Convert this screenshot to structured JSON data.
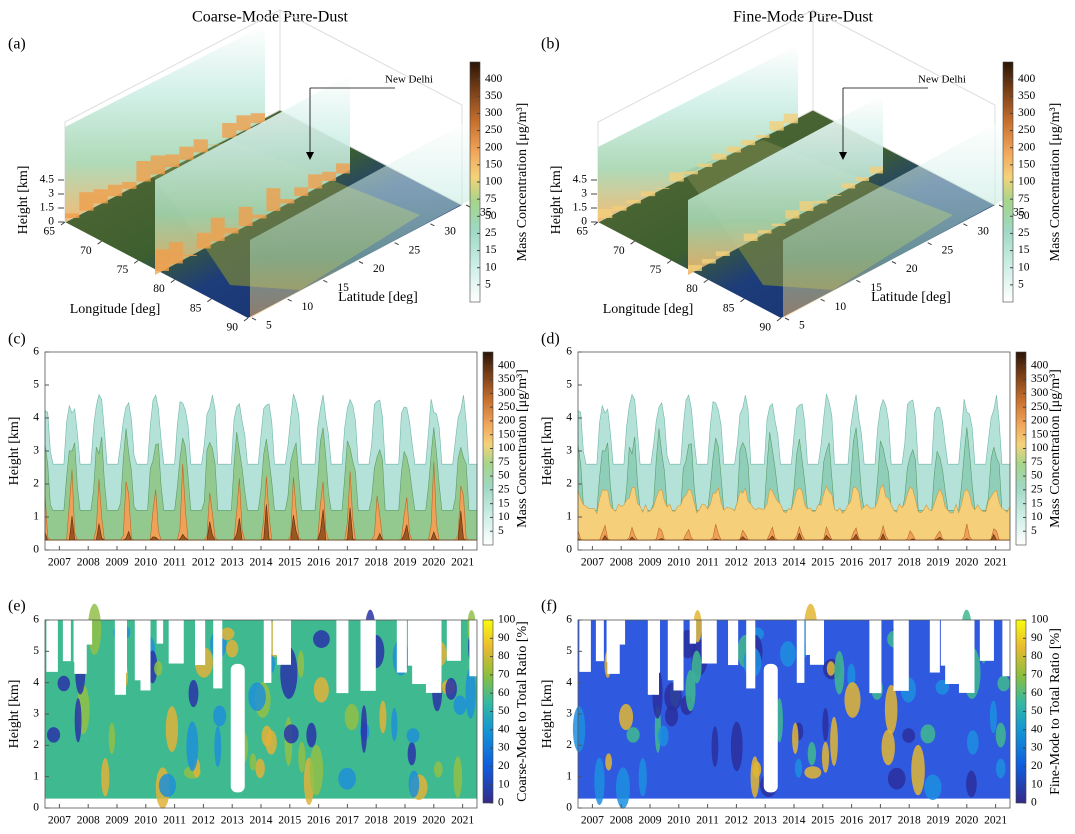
{
  "column_titles": [
    "Coarse-Mode Pure-Dust",
    "Fine-Mode Pure-Dust"
  ],
  "panels": [
    {
      "label": "(a)",
      "kind": "map3d",
      "annotation": "New Delhi",
      "zlabel": "Height [km]",
      "zlim": [
        0,
        6
      ],
      "zticks": [
        0,
        1.5,
        3,
        4.5
      ],
      "xlabel": "Longitude [deg]",
      "xlim": [
        65,
        90
      ],
      "xticks": [
        65,
        70,
        75,
        80,
        85,
        90
      ],
      "ylabel": "Latitude [deg]",
      "ylim": [
        5,
        35
      ],
      "yticks": [
        5,
        10,
        15,
        20,
        25,
        30,
        35
      ],
      "colorbar_label": "Mass Concentration [μg/m³]",
      "colorbar_ticks": [
        5,
        10,
        15,
        25,
        50,
        75,
        100,
        150,
        200,
        250,
        300,
        350,
        400
      ],
      "colormap": "dust",
      "mode": "coarse"
    },
    {
      "label": "(b)",
      "kind": "map3d",
      "annotation": "New Delhi",
      "zlabel": "Height [km]",
      "zlim": [
        0,
        6
      ],
      "zticks": [
        0,
        1.5,
        3,
        4.5
      ],
      "xlabel": "Longitude [deg]",
      "xlim": [
        65,
        90
      ],
      "xticks": [
        65,
        70,
        75,
        80,
        85,
        90
      ],
      "ylabel": "Latitude [deg]",
      "ylim": [
        5,
        35
      ],
      "yticks": [
        5,
        10,
        15,
        20,
        25,
        30,
        35
      ],
      "colorbar_label": "Mass Concentration [μg/m³]",
      "colorbar_ticks": [
        5,
        10,
        15,
        25,
        50,
        75,
        100,
        150,
        200,
        250,
        300,
        350,
        400
      ],
      "colormap": "dust",
      "mode": "fine"
    },
    {
      "label": "(c)",
      "kind": "contour",
      "ylabel": "Height [km]",
      "ylim": [
        0,
        6
      ],
      "yticks": [
        0,
        1,
        2,
        3,
        4,
        5,
        6
      ],
      "years": [
        "2007",
        "2008",
        "2009",
        "2010",
        "2011",
        "2012",
        "2013",
        "2014",
        "2015",
        "2016",
        "2017",
        "2018",
        "2019",
        "2020",
        "2021"
      ],
      "colorbar_label": "Mass Concentration [μg/m³]",
      "colorbar_ticks": [
        5,
        10,
        15,
        25,
        50,
        75,
        100,
        150,
        200,
        250,
        300,
        350,
        400
      ],
      "colormap": "dust",
      "mode": "coarse"
    },
    {
      "label": "(d)",
      "kind": "contour",
      "ylabel": "Height [km]",
      "ylim": [
        0,
        6
      ],
      "yticks": [
        0,
        1,
        2,
        3,
        4,
        5,
        6
      ],
      "years": [
        "2007",
        "2008",
        "2009",
        "2010",
        "2011",
        "2012",
        "2013",
        "2014",
        "2015",
        "2016",
        "2017",
        "2018",
        "2019",
        "2020",
        "2021"
      ],
      "colorbar_label": "Mass Concentration [μg/m³]",
      "colorbar_ticks": [
        5,
        10,
        15,
        25,
        50,
        75,
        100,
        150,
        200,
        250,
        300,
        350,
        400
      ],
      "colormap": "dust",
      "mode": "fine"
    },
    {
      "label": "(e)",
      "kind": "contour",
      "ylabel": "Height [km]",
      "ylim": [
        0,
        6
      ],
      "yticks": [
        0,
        1,
        2,
        3,
        4,
        5,
        6
      ],
      "years": [
        "2007",
        "2008",
        "2009",
        "2010",
        "2011",
        "2012",
        "2013",
        "2014",
        "2015",
        "2016",
        "2017",
        "2018",
        "2019",
        "2020",
        "2021"
      ],
      "colorbar_label": "Coarse-Mode to Total Ratio [%]",
      "clim": [
        0,
        100
      ],
      "colorbar_ticks": [
        0,
        10,
        20,
        30,
        40,
        50,
        60,
        70,
        80,
        90,
        100
      ],
      "colormap": "parula",
      "mode": "coarse"
    },
    {
      "label": "(f)",
      "kind": "contour",
      "ylabel": "Height [km]",
      "ylim": [
        0,
        6
      ],
      "yticks": [
        0,
        1,
        2,
        3,
        4,
        5,
        6
      ],
      "years": [
        "2007",
        "2008",
        "2009",
        "2010",
        "2011",
        "2012",
        "2013",
        "2014",
        "2015",
        "2016",
        "2017",
        "2018",
        "2019",
        "2020",
        "2021"
      ],
      "colorbar_label": "Fine-Mode to Total Ratio [%]",
      "clim": [
        0,
        100
      ],
      "colorbar_ticks": [
        0,
        10,
        20,
        30,
        40,
        50,
        60,
        70,
        80,
        90,
        100
      ],
      "colormap": "parula",
      "mode": "fine"
    }
  ]
}
